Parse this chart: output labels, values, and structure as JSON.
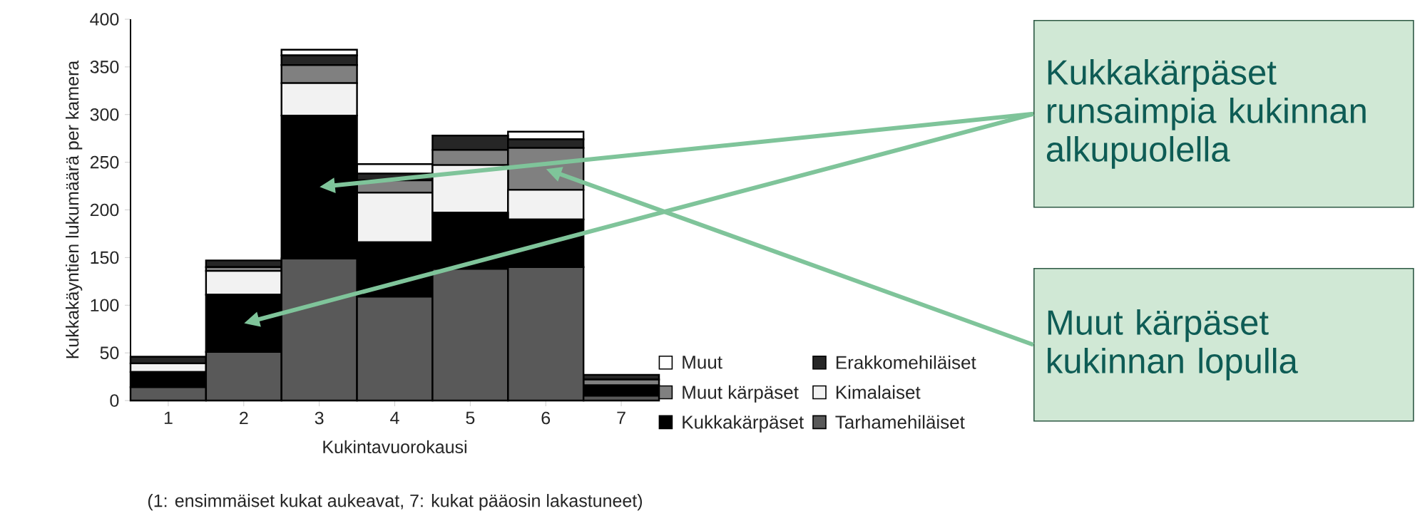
{
  "chart_data": {
    "type": "bar",
    "stacked": true,
    "xlabel": "Kukintavuorokausi",
    "ylabel": "Kukkakäyntien lukumäärä per kamera",
    "categories": [
      "1",
      "2",
      "3",
      "4",
      "5",
      "6",
      "7"
    ],
    "series": [
      {
        "name": "Tarhamehiläiset",
        "color": "#595959",
        "values": [
          14,
          51,
          149,
          109,
          138,
          140,
          5
        ]
      },
      {
        "name": "Kukkakärpäset",
        "color": "#000000",
        "values": [
          16,
          60,
          150,
          57,
          59,
          50,
          11
        ]
      },
      {
        "name": "Kimalaiset",
        "color": "#f2f2f2",
        "values": [
          9,
          25,
          34,
          52,
          50,
          31,
          0
        ]
      },
      {
        "name": "Muut kärpäset",
        "color": "#808080",
        "values": [
          0,
          4,
          19,
          13,
          16,
          44,
          6
        ]
      },
      {
        "name": "Erakkomehiläiset",
        "color": "#262626",
        "values": [
          7,
          7,
          10,
          7,
          15,
          9,
          5
        ]
      },
      {
        "name": "Muut",
        "color": "#ffffff",
        "values": [
          0,
          0,
          6,
          10,
          0,
          8,
          0
        ]
      }
    ],
    "ylim": [
      0,
      400
    ],
    "yticks": [
      0,
      50,
      100,
      150,
      200,
      250,
      300,
      350,
      400
    ],
    "legend": "right",
    "grid": false,
    "annotations": [
      "Kukkakärpäset runsaimpia kukinnan alkupuolella",
      "Muut kärpäset kukinnan lopulla",
      "(1: ensimmäiset kukat aukeavat, 7: kukat pääosin lakastuneet)"
    ]
  }
}
